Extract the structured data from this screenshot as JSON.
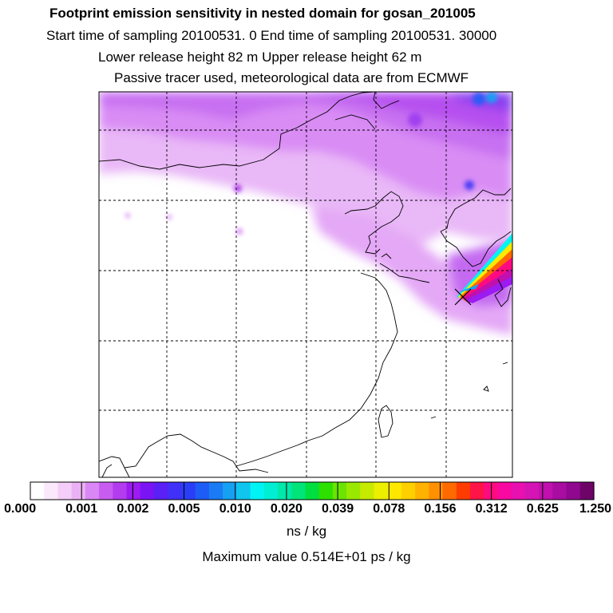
{
  "header": {
    "title": "Footprint emission sensitivity in nested domain for gosan_201005",
    "sampling_line": "Start time of sampling 20100531.     0     End time of sampling 20100531. 30000",
    "release_line": "Lower release height   82 m          Upper release height   62 m",
    "tracer_line": "Passive tracer used, meteorological data are from ECMWF"
  },
  "colorbar": {
    "tick_labels": [
      "0.000",
      "0.001",
      "0.002",
      "0.005",
      "0.010",
      "0.020",
      "0.039",
      "0.078",
      "0.156",
      "0.312",
      "0.625",
      "1.250"
    ],
    "colors": [
      "#ffffff",
      "#fbe8fb",
      "#f4cef8",
      "#eab2f5",
      "#da86f4",
      "#c85cf1",
      "#b23cee",
      "#9b1bf0",
      "#7a14f5",
      "#5a20f5",
      "#4030f8",
      "#2a3ef8",
      "#1e5cf6",
      "#1a7bf4",
      "#16a0f2",
      "#10c6ef",
      "#00f4f4",
      "#00efd2",
      "#00e8aa",
      "#00e47a",
      "#00de40",
      "#2ee000",
      "#6ae400",
      "#9ae800",
      "#c6ea00",
      "#ecef00",
      "#ffe800",
      "#ffd000",
      "#ffb200",
      "#ff9000",
      "#ff6a00",
      "#ff3c00",
      "#ff1448",
      "#ff0a80",
      "#f80aa0",
      "#e810b0",
      "#d414b4",
      "#c010ae",
      "#a80ca0",
      "#900890",
      "#6e0468"
    ],
    "units": "ns / kg",
    "max_value_label": "Maximum value  0.514E+01 ps / kg"
  },
  "map": {
    "receptor_marker": "receptor-x-icon",
    "coastline_color": "#000000",
    "gridline_style": "dashed"
  }
}
